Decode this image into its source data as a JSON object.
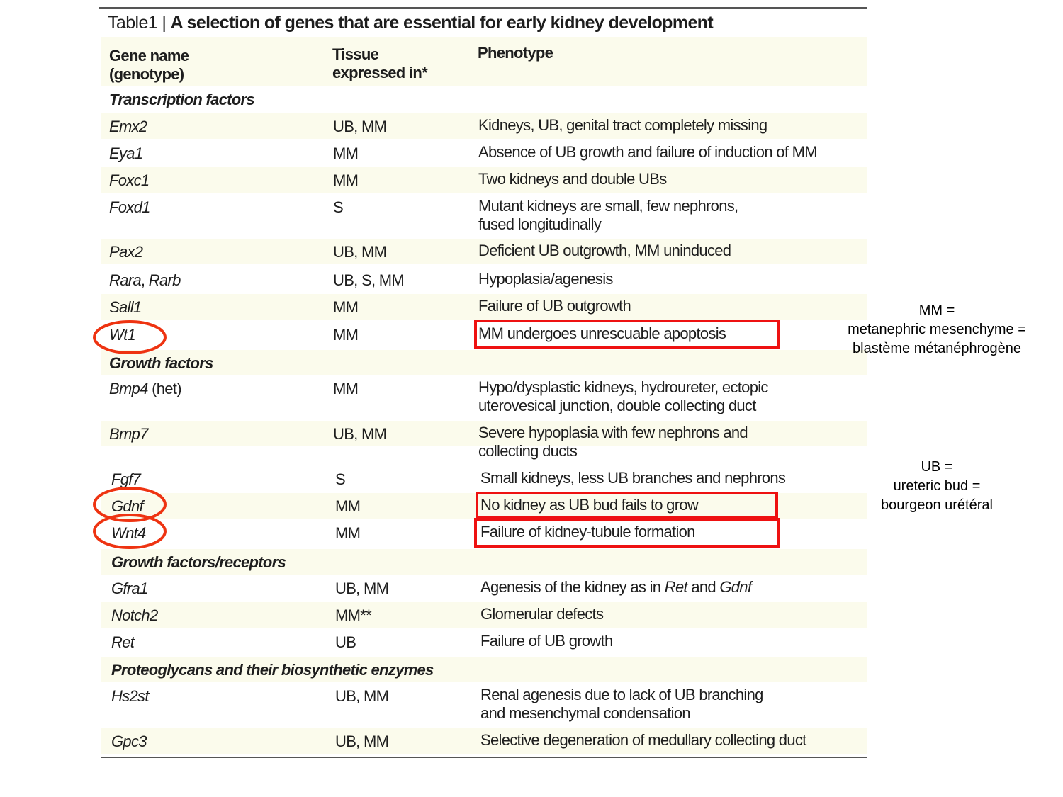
{
  "title": {
    "label": "Table1 | ",
    "text": "A selection of genes that are essential for early kidney development"
  },
  "headers": {
    "gene": "Gene name\n(genotype)",
    "tissue": "Tissue\nexpressed in*",
    "phenotype": "Phenotype"
  },
  "rows": [
    {
      "section": "Transcription factors"
    },
    {
      "gene": [
        [
          "Emx2",
          true
        ]
      ],
      "tissue": "UB, MM",
      "phenotype": [
        [
          "Kidneys, UB, genital tract completely missing",
          false
        ]
      ]
    },
    {
      "gene": [
        [
          "Eya1",
          true
        ]
      ],
      "tissue": "MM",
      "phenotype": [
        [
          "Absence of UB growth and failure of induction of MM",
          false
        ]
      ]
    },
    {
      "gene": [
        [
          "Foxc1",
          true
        ]
      ],
      "tissue": "MM",
      "phenotype": [
        [
          "Two kidneys and double UBs",
          false
        ]
      ]
    },
    {
      "gene": [
        [
          "Foxd1",
          true
        ]
      ],
      "tissue": "S",
      "phenotype": [
        [
          "Mutant kidneys are small, few nephrons,\nfused longitudinally",
          false
        ]
      ]
    },
    {
      "gene": [
        [
          "Pax2",
          true
        ]
      ],
      "tissue": "UB, MM",
      "phenotype": [
        [
          "Deficient UB outgrowth, MM uninduced",
          false
        ]
      ]
    },
    {
      "gene": [
        [
          "Rara",
          true
        ],
        [
          ", ",
          false
        ],
        [
          "Rarb",
          true
        ]
      ],
      "tissue": "UB, S, MM",
      "phenotype": [
        [
          "Hypoplasia/agenesis",
          false
        ]
      ]
    },
    {
      "gene": [
        [
          "Sall1",
          true
        ]
      ],
      "tissue": "MM",
      "phenotype": [
        [
          "Failure of UB outgrowth",
          false
        ]
      ]
    },
    {
      "gene": [
        [
          "Wt1",
          true
        ]
      ],
      "tissue": "MM",
      "phenotype": [
        [
          "MM undergoes unrescuable apoptosis",
          false
        ]
      ],
      "highlight": true
    },
    {
      "section": "Growth factors"
    },
    {
      "gene": [
        [
          "Bmp4",
          true
        ],
        [
          " (het)",
          false
        ]
      ],
      "tissue": "MM",
      "phenotype": [
        [
          "Hypo/dysplastic kidneys, hydroureter, ectopic\nuterovesical junction, double collecting duct",
          false
        ]
      ]
    },
    {
      "gene": [
        [
          "Bmp7",
          true
        ]
      ],
      "tissue": "UB, MM",
      "phenotype": [
        [
          "Severe hypoplasia with few nephrons and\ncollecting ducts",
          false
        ]
      ]
    },
    {
      "gene": [
        [
          "Fgf7",
          true
        ]
      ],
      "tissue": "S",
      "phenotype": [
        [
          "Small kidneys, less UB branches and nephrons",
          false
        ]
      ]
    },
    {
      "gene": [
        [
          "Gdnf",
          true
        ]
      ],
      "tissue": "MM",
      "phenotype": [
        [
          "No kidney as UB bud fails to grow",
          false
        ]
      ],
      "highlight": true
    },
    {
      "gene": [
        [
          "Wnt4",
          true
        ]
      ],
      "tissue": "MM",
      "phenotype": [
        [
          "Failure of kidney-tubule formation",
          false
        ]
      ],
      "highlight": true
    },
    {
      "section": "Growth factors/receptors"
    },
    {
      "gene": [
        [
          "Gfra1",
          true
        ]
      ],
      "tissue": "UB, MM",
      "phenotype": [
        [
          "Agenesis of the kidney as in ",
          false
        ],
        [
          "Ret",
          true
        ],
        [
          " and ",
          false
        ],
        [
          "Gdnf",
          true
        ]
      ]
    },
    {
      "gene": [
        [
          "Notch2",
          true
        ]
      ],
      "tissue": "MM**",
      "phenotype": [
        [
          "Glomerular defects",
          false
        ]
      ]
    },
    {
      "gene": [
        [
          "Ret",
          true
        ]
      ],
      "tissue": "UB",
      "phenotype": [
        [
          "Failure of UB growth",
          false
        ]
      ]
    },
    {
      "section": "Proteoglycans and their biosynthetic enzymes"
    },
    {
      "gene": [
        [
          "Hs2st",
          true
        ]
      ],
      "tissue": "UB, MM",
      "phenotype": [
        [
          "Renal agenesis due to lack of UB branching\nand mesenchymal condensation",
          false
        ]
      ]
    },
    {
      "gene": [
        [
          "Gpc3",
          true
        ]
      ],
      "tissue": "UB, MM",
      "phenotype": [
        [
          "Selective degeneration of medullary collecting duct",
          false
        ]
      ]
    }
  ],
  "notes": {
    "mm": [
      "MM =",
      "metanephric mesenchyme =",
      "blastème métanéphrogène"
    ],
    "ub": [
      "UB =",
      "ureteric bud =",
      "bourgeon urétéral"
    ]
  },
  "colors": {
    "highlight": "#ee1111",
    "circle": "#ee3311",
    "stripe": "#fbfbec"
  }
}
